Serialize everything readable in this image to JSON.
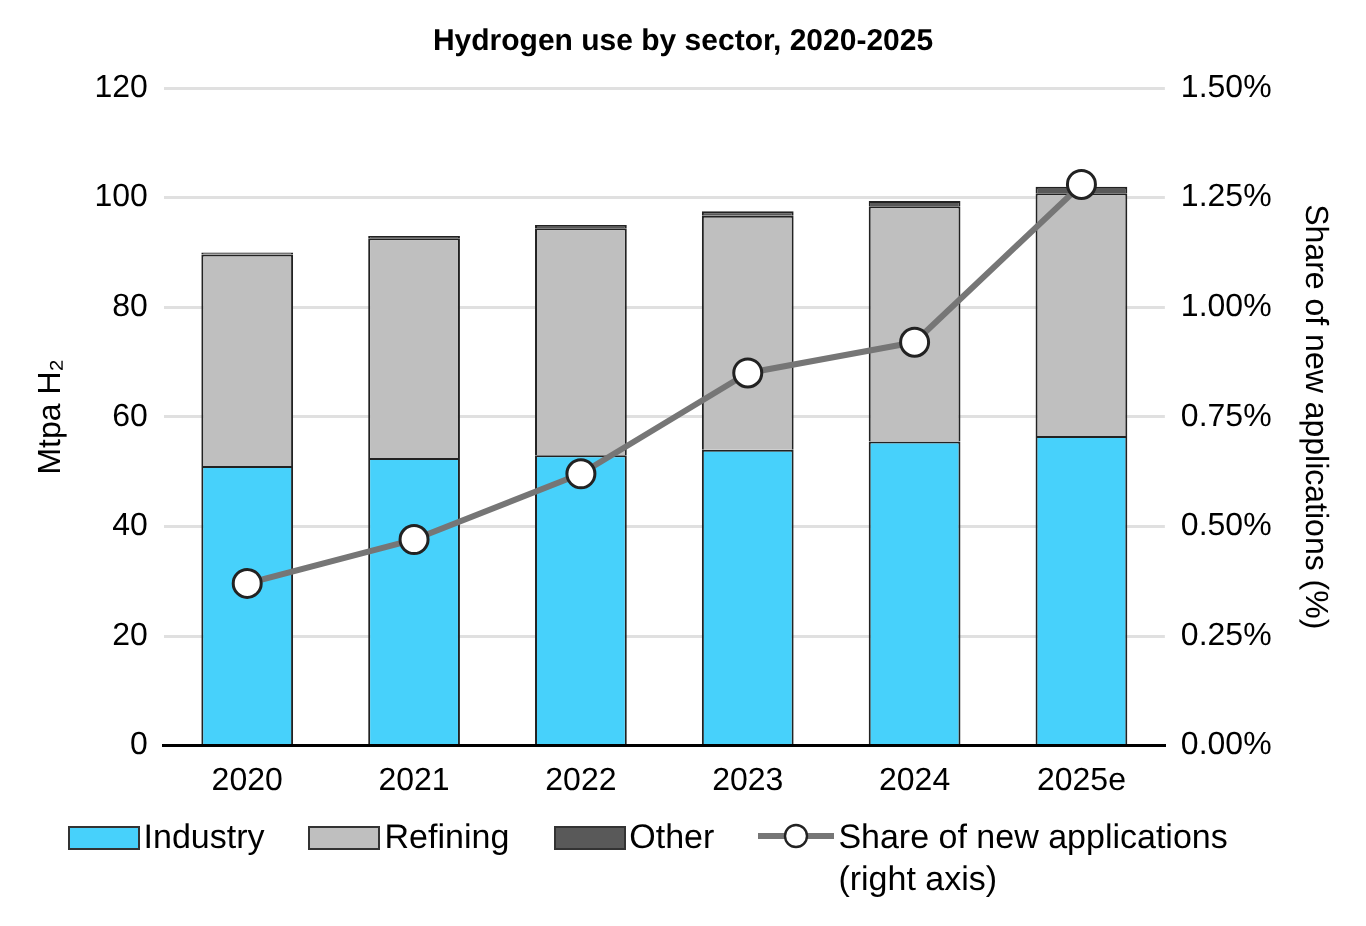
{
  "chart_data": {
    "type": "bar",
    "title": "Hydrogen use by sector, 2020-2025",
    "ylabel": "Mtpa H₂",
    "y2label": "Share of new applications (%)",
    "categories": [
      "2020",
      "2021",
      "2022",
      "2023",
      "2024",
      "2025e"
    ],
    "stacked": true,
    "series": [
      {
        "name": "Industry",
        "color": "#47d1fb",
        "values": [
          51,
          52.5,
          53,
          54,
          55.5,
          56.5
        ]
      },
      {
        "name": "Refining",
        "color": "#bfbfbf",
        "values": [
          38.6,
          40.1,
          41.4,
          42.7,
          42.9,
          44.3
        ]
      },
      {
        "name": "Other",
        "color": "#595959",
        "values": [
          0.4,
          0.4,
          0.6,
          0.8,
          1,
          1.2
        ]
      },
      {
        "name": "Share of new applications (right axis)",
        "type": "line",
        "axis": "y2",
        "color": "#767676",
        "marker": "circle",
        "values": [
          0.37,
          0.47,
          0.62,
          0.85,
          0.92,
          1.28
        ]
      }
    ],
    "ylim": [
      0,
      120
    ],
    "yticks": [
      0,
      20,
      40,
      60,
      80,
      100,
      120
    ],
    "y2lim": [
      0,
      1.5
    ],
    "y2ticks": [
      {
        "value": 0,
        "label": "0.00%"
      },
      {
        "value": 0.25,
        "label": "0.25%"
      },
      {
        "value": 0.5,
        "label": "0.50%"
      },
      {
        "value": 0.75,
        "label": "0.75%"
      },
      {
        "value": 1,
        "label": "1.00%"
      },
      {
        "value": 1.25,
        "label": "1.25%"
      },
      {
        "value": 1.5,
        "label": "1.50%"
      }
    ],
    "grid": "y",
    "legend": "bottom"
  }
}
